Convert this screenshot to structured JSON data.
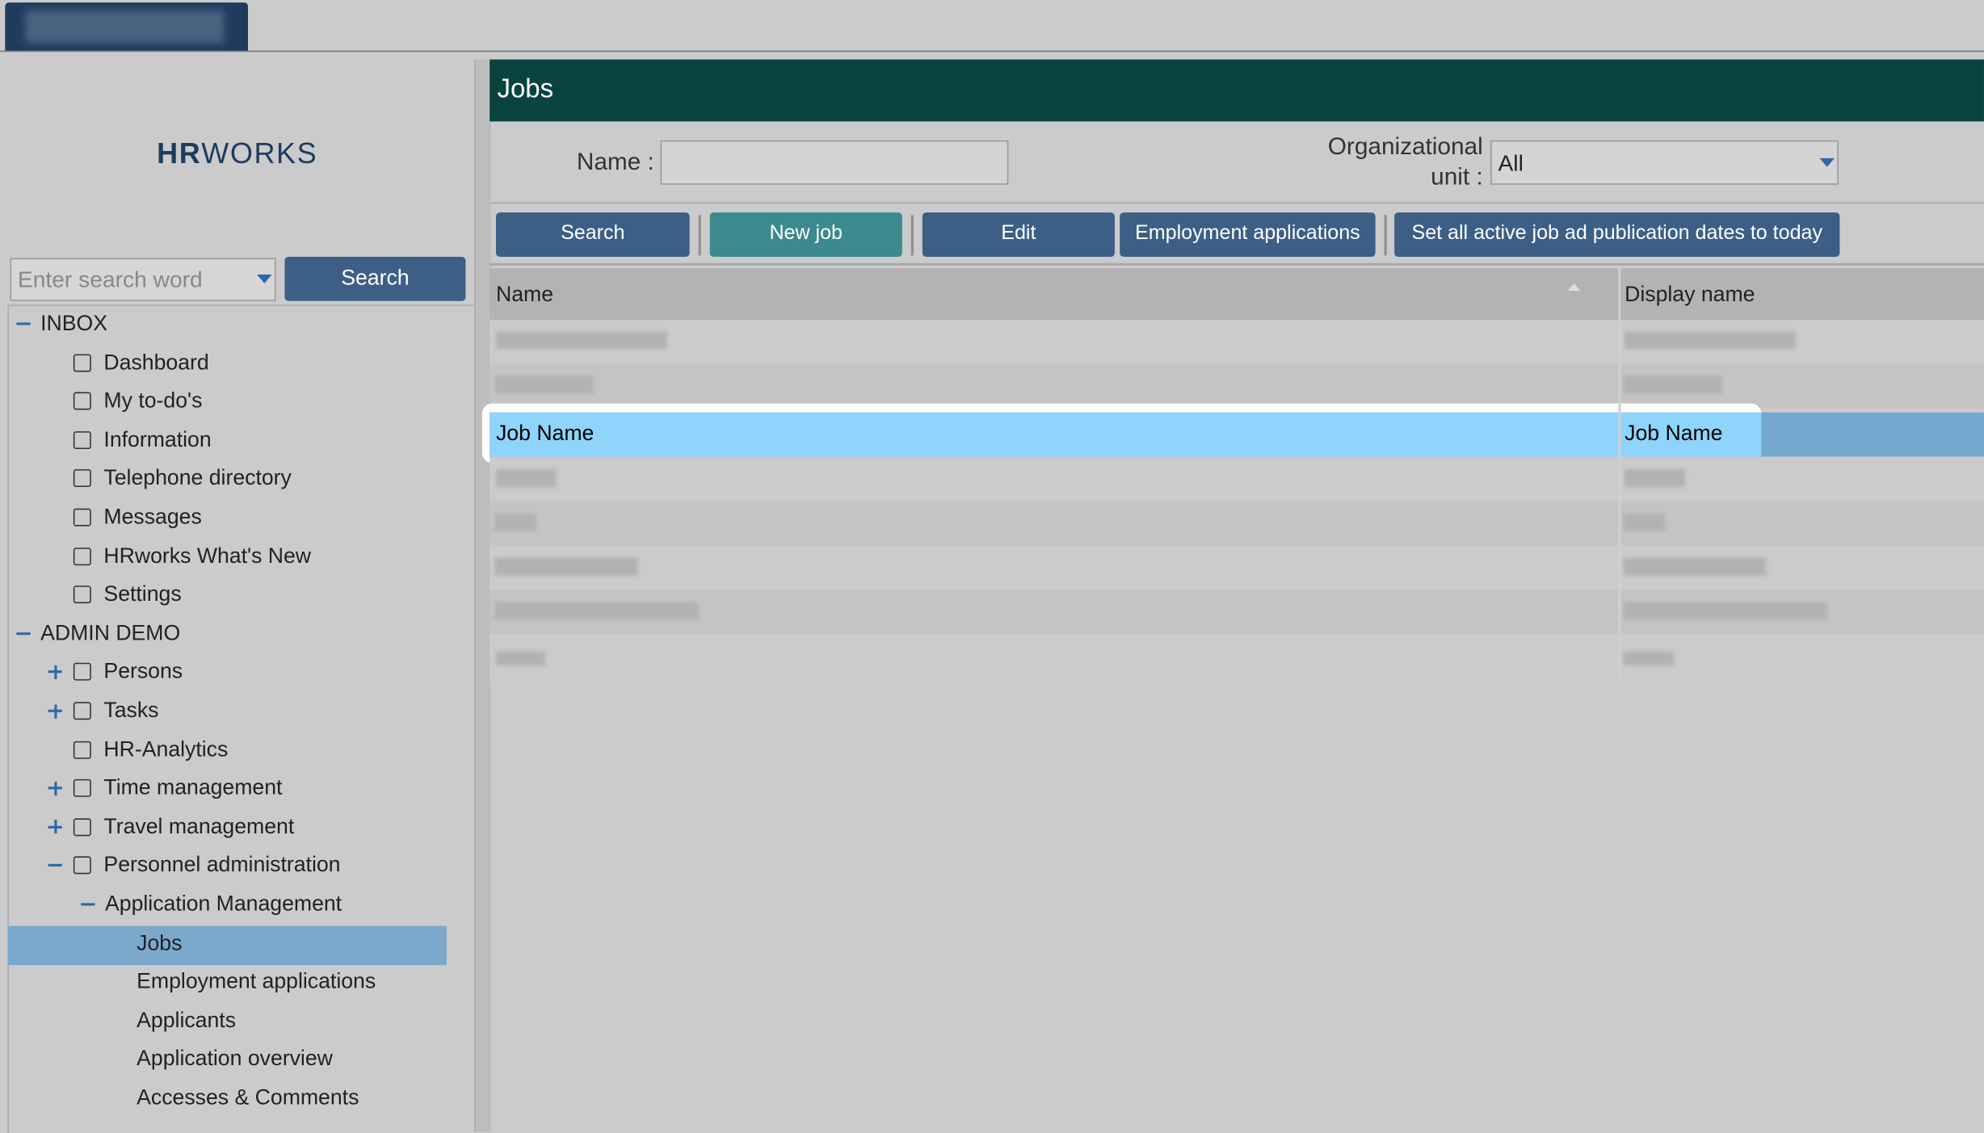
{
  "sidebar": {
    "logo": {
      "bold": "HR",
      "light": "WORKS"
    },
    "search_placeholder": "Enter search word",
    "search_button": "Search",
    "tree": [
      {
        "label": "INBOX",
        "children": [
          "Dashboard",
          "My to-do's",
          "Information",
          "Telephone directory",
          "Messages",
          "HRworks What's New",
          "Settings"
        ]
      },
      {
        "label": "ADMIN DEMO",
        "children": [
          "Persons",
          "Tasks",
          "HR-Analytics",
          "Time management",
          "Travel management",
          {
            "label": "Personnel administration",
            "children": [
              {
                "label": "Application Management",
                "children": [
                  "Jobs",
                  "Employment applications",
                  "Applicants",
                  "Application overview",
                  "Accesses & Comments"
                ]
              }
            ]
          }
        ]
      }
    ]
  },
  "main": {
    "title": "Jobs",
    "filters": {
      "name_label": "Name :",
      "org_label": "Organizational unit :",
      "org_value": "All"
    },
    "buttons": [
      "Search",
      "New job",
      "Edit",
      "Employment applications",
      "Set all active job ad publication dates to today"
    ],
    "table": {
      "columns": [
        "Name",
        "Display name"
      ],
      "selected_row": [
        "Job Name",
        "Job Name"
      ]
    }
  }
}
